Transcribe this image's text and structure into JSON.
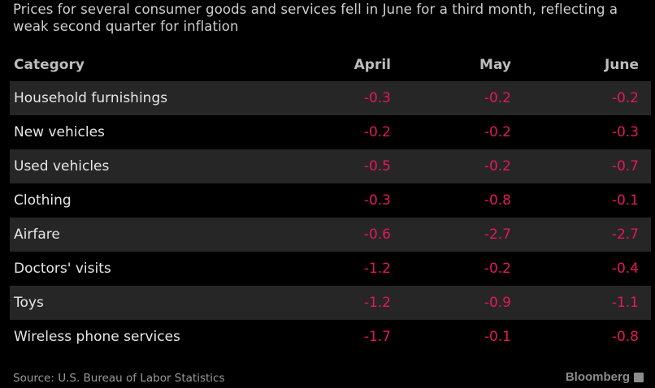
{
  "header": {
    "title": "Prices for several consumer goods and services fell in June for a third month, reflecting a weak second quarter for inflation"
  },
  "footer": {
    "source": "Source: U.S. Bureau of Labor Statistics",
    "brand": "Bloomberg"
  },
  "colors": {
    "background": "#000000",
    "negative_value": "#e2195a",
    "stripe": "#262626"
  },
  "chart_data": {
    "type": "table",
    "title": "Prices for several consumer goods and services fell in June for a third month, reflecting a weak second quarter for inflation",
    "columns": [
      "Category",
      "April",
      "May",
      "June"
    ],
    "rows": [
      [
        "Household furnishings",
        "-0.3",
        "-0.2",
        "-0.2"
      ],
      [
        "New vehicles",
        "-0.2",
        "-0.2",
        "-0.3"
      ],
      [
        "Used vehicles",
        "-0.5",
        "-0.2",
        "-0.7"
      ],
      [
        "Clothing",
        "-0.3",
        "-0.8",
        "-0.1"
      ],
      [
        "Airfare",
        "-0.6",
        "-2.7",
        "-2.7"
      ],
      [
        "Doctors' visits",
        "-1.2",
        "-0.2",
        "-0.4"
      ],
      [
        "Toys",
        "-1.2",
        "-0.9",
        "-1.1"
      ],
      [
        "Wireless phone services",
        "-1.7",
        "-0.1",
        "-0.8"
      ]
    ],
    "source": "Source: U.S. Bureau of Labor Statistics"
  }
}
